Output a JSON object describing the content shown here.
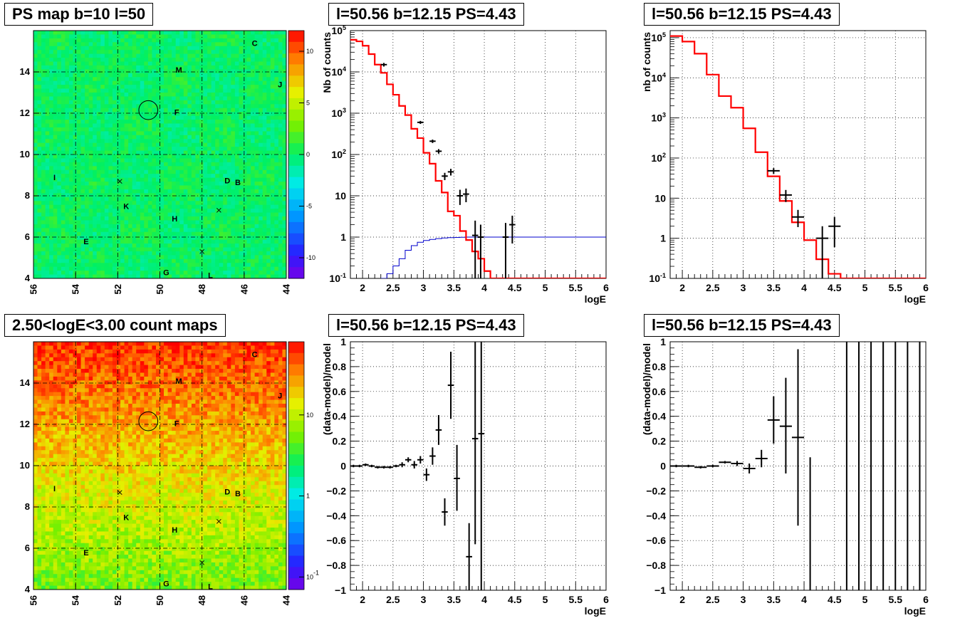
{
  "colors": {
    "model": "#ff0000",
    "exposure": "#0000cc",
    "data": "#000000",
    "grid": "#000000"
  },
  "panels": [
    {
      "id": "ps-map",
      "title": "PS map b=10 l=50",
      "kind": "map",
      "map_palette": "ps",
      "xaxis": {
        "min": 56,
        "max": 44,
        "ticks": [
          56,
          54,
          52,
          50,
          48,
          46,
          44
        ],
        "grid": [
          54,
          52,
          50,
          48,
          46
        ]
      },
      "yaxis": {
        "min": 4,
        "max": 16,
        "ticks": [
          4,
          6,
          8,
          10,
          12,
          14
        ],
        "grid": [
          6,
          8,
          10,
          12,
          14
        ]
      },
      "colorbar": {
        "scale": "linear",
        "min": -12,
        "max": 12,
        "ticks": [
          10,
          5,
          0,
          -5,
          -10
        ],
        "labels": [
          "10",
          "5",
          "0",
          "-5",
          "-10"
        ]
      },
      "sources": [
        {
          "label": "C",
          "l": 45.5,
          "b": 15.4
        },
        {
          "label": "M",
          "l": 49.1,
          "b": 14.1
        },
        {
          "label": "J",
          "l": 44.3,
          "b": 13.4
        },
        {
          "label": "F",
          "l": 49.2,
          "b": 12.05
        },
        {
          "label": "I",
          "l": 55.0,
          "b": 8.9
        },
        {
          "label": "D",
          "l": 46.8,
          "b": 8.75
        },
        {
          "label": "B",
          "l": 46.3,
          "b": 8.65
        },
        {
          "label": "K",
          "l": 51.6,
          "b": 7.5
        },
        {
          "label": "H",
          "l": 49.3,
          "b": 6.9
        },
        {
          "label": "E",
          "l": 53.5,
          "b": 5.8
        },
        {
          "label": "G",
          "l": 49.7,
          "b": 4.3
        },
        {
          "label": "L",
          "l": 47.6,
          "b": 4.15
        }
      ],
      "crosses": [
        {
          "l": 51.9,
          "b": 8.7
        },
        {
          "l": 47.2,
          "b": 7.3
        },
        {
          "l": 48.0,
          "b": 5.3
        }
      ],
      "circle": {
        "l": 50.55,
        "b": 12.15,
        "r": 0.45
      }
    },
    {
      "id": "spectrum-1",
      "title": "l=50.56 b=12.15 PS=4.43",
      "kind": "spectrum",
      "ylabel": "Nb of counts",
      "xlabel": "logE",
      "xaxis": {
        "min": 1.8,
        "max": 6,
        "ticks": [
          2,
          2.5,
          3,
          3.5,
          4,
          4.5,
          5,
          5.5,
          6
        ],
        "labels": [
          "2",
          "2.5",
          "3",
          "3.5",
          "4",
          "4.5",
          "5",
          "5.5",
          "6"
        ]
      },
      "yaxis": {
        "scale": "log",
        "min": 0.1,
        "max": 100000,
        "ticks": [
          0.1,
          1,
          10,
          100,
          1000,
          10000,
          100000
        ],
        "labels": [
          "10^-1",
          "1",
          "10",
          "10^2",
          "10^3",
          "10^4",
          "10^5"
        ]
      },
      "model_step": {
        "edges": [
          1.8,
          1.9,
          2.0,
          2.1,
          2.2,
          2.3,
          2.4,
          2.5,
          2.6,
          2.7,
          2.8,
          2.9,
          3.0,
          3.1,
          3.2,
          3.3,
          3.4,
          3.5,
          3.6,
          3.7,
          3.8,
          3.9,
          4.0,
          4.1,
          4.2,
          4.3,
          6.0
        ],
        "values": [
          60000,
          55000,
          43000,
          27000,
          15000,
          9500,
          5000,
          2800,
          1500,
          900,
          420,
          250,
          110,
          60,
          23,
          12,
          4.2,
          3.3,
          1.4,
          0.85,
          0.45,
          0.3,
          0.15,
          0.09,
          0.1,
          0.1
        ]
      },
      "exposure_step": {
        "edges": [
          2.3,
          2.4,
          2.5,
          2.6,
          2.7,
          2.8,
          2.9,
          3.0,
          3.1,
          3.2,
          3.3,
          3.4,
          3.5,
          3.6,
          3.7,
          6.0
        ],
        "values": [
          0.1,
          0.13,
          0.2,
          0.3,
          0.48,
          0.62,
          0.75,
          0.83,
          0.88,
          0.92,
          0.95,
          0.97,
          0.98,
          0.99,
          1.0
        ]
      },
      "points": [
        {
          "x": 2.35,
          "y": 15000,
          "lo": 13500,
          "hi": 16500,
          "dx": 0.05
        },
        {
          "x": 2.95,
          "y": 600,
          "lo": 550,
          "hi": 650,
          "dx": 0.05
        },
        {
          "x": 3.15,
          "y": 210,
          "lo": 190,
          "hi": 230,
          "dx": 0.05
        },
        {
          "x": 3.25,
          "y": 120,
          "lo": 105,
          "hi": 135,
          "dx": 0.05
        },
        {
          "x": 3.35,
          "y": 30,
          "lo": 24,
          "hi": 36,
          "dx": 0.05
        },
        {
          "x": 3.45,
          "y": 38,
          "lo": 31,
          "hi": 45,
          "dx": 0.05
        },
        {
          "x": 3.6,
          "y": 10,
          "lo": 6,
          "hi": 14,
          "dx": 0.05
        },
        {
          "x": 3.7,
          "y": 11,
          "lo": 7,
          "hi": 15,
          "dx": 0.05
        },
        {
          "x": 3.85,
          "y": 1.1,
          "lo": 0.1,
          "hi": 2.5,
          "dx": 0.05
        },
        {
          "x": 3.94,
          "y": 1.0,
          "lo": 0.1,
          "hi": 2.0,
          "dx": 0.05
        },
        {
          "x": 4.35,
          "y": 1.0,
          "lo": 0.1,
          "hi": 2.2,
          "dx": 0.05
        },
        {
          "x": 4.46,
          "y": 2.0,
          "lo": 0.7,
          "hi": 3.3,
          "dx": 0.05
        }
      ]
    },
    {
      "id": "spectrum-2",
      "title": "l=50.56 b=12.15 PS=4.43",
      "kind": "spectrum",
      "ylabel": "nb of counts",
      "xlabel": "logE",
      "xaxis": {
        "min": 1.8,
        "max": 6,
        "ticks": [
          2,
          2.5,
          3,
          3.5,
          4,
          4.5,
          5,
          5.5,
          6
        ],
        "labels": [
          "2",
          "2.5",
          "3",
          "3.5",
          "4",
          "4.5",
          "5",
          "5.5",
          "6"
        ]
      },
      "yaxis": {
        "scale": "log",
        "min": 0.1,
        "max": 150000,
        "ticks": [
          0.1,
          1,
          10,
          100,
          1000,
          10000,
          100000
        ],
        "labels": [
          "10^-1",
          "1",
          "10",
          "10^2",
          "10^3",
          "10^4",
          "10^5"
        ]
      },
      "model_step": {
        "edges": [
          1.8,
          2.0,
          2.2,
          2.4,
          2.6,
          2.8,
          3.0,
          3.2,
          3.4,
          3.6,
          3.8,
          4.0,
          4.2,
          4.4,
          4.6,
          6.0
        ],
        "values": [
          110000,
          80000,
          40000,
          12000,
          3500,
          1800,
          550,
          140,
          35,
          8.5,
          2.5,
          0.9,
          0.3,
          0.13,
          0.1
        ]
      },
      "points": [
        {
          "x": 3.5,
          "y": 48,
          "lo": 40,
          "hi": 56,
          "dx": 0.1
        },
        {
          "x": 3.7,
          "y": 12,
          "lo": 8,
          "hi": 16,
          "dx": 0.1
        },
        {
          "x": 3.9,
          "y": 3.4,
          "lo": 1.9,
          "hi": 5.1,
          "dx": 0.1
        },
        {
          "x": 4.3,
          "y": 1.0,
          "lo": 0.1,
          "hi": 2.0,
          "dx": 0.1
        },
        {
          "x": 4.5,
          "y": 2.0,
          "lo": 0.6,
          "hi": 3.4,
          "dx": 0.1
        }
      ]
    },
    {
      "id": "count-map",
      "title": "2.50<logE<3.00 count maps",
      "kind": "map",
      "map_palette": "counts",
      "xaxis": {
        "min": 56,
        "max": 44,
        "ticks": [
          56,
          54,
          52,
          50,
          48,
          46,
          44
        ],
        "grid": [
          54,
          52,
          50,
          48,
          46
        ]
      },
      "yaxis": {
        "min": 4,
        "max": 16,
        "ticks": [
          4,
          6,
          8,
          10,
          12,
          14
        ],
        "grid": [
          6,
          8,
          10,
          12,
          14
        ]
      },
      "colorbar": {
        "scale": "log",
        "min": 0.07,
        "max": 80,
        "ticks": [
          10,
          1,
          0.1
        ],
        "labels": [
          "10",
          "1",
          "10^-1"
        ]
      },
      "sources": [
        {
          "label": "C",
          "l": 45.5,
          "b": 15.4
        },
        {
          "label": "M",
          "l": 49.1,
          "b": 14.1
        },
        {
          "label": "J",
          "l": 44.3,
          "b": 13.4
        },
        {
          "label": "F",
          "l": 49.2,
          "b": 12.05
        },
        {
          "label": "I",
          "l": 55.0,
          "b": 8.9
        },
        {
          "label": "D",
          "l": 46.8,
          "b": 8.75
        },
        {
          "label": "B",
          "l": 46.3,
          "b": 8.65
        },
        {
          "label": "K",
          "l": 51.6,
          "b": 7.5
        },
        {
          "label": "H",
          "l": 49.3,
          "b": 6.9
        },
        {
          "label": "E",
          "l": 53.5,
          "b": 5.8
        },
        {
          "label": "G",
          "l": 49.7,
          "b": 4.3
        },
        {
          "label": "L",
          "l": 47.6,
          "b": 4.15
        }
      ],
      "crosses": [
        {
          "l": 51.9,
          "b": 8.7
        },
        {
          "l": 47.2,
          "b": 7.3
        },
        {
          "l": 48.0,
          "b": 5.3
        }
      ],
      "circle": {
        "l": 50.55,
        "b": 12.15,
        "r": 0.45
      }
    },
    {
      "id": "residuals-1",
      "title": "l=50.56 b=12.15 PS=4.43",
      "kind": "residual",
      "ylabel": "(data-model)/model",
      "xlabel": "logE",
      "xaxis": {
        "min": 1.8,
        "max": 6,
        "ticks": [
          2,
          2.5,
          3,
          3.5,
          4,
          4.5,
          5,
          5.5,
          6
        ],
        "labels": [
          "2",
          "2.5",
          "3",
          "3.5",
          "4",
          "4.5",
          "5",
          "5.5",
          "6"
        ]
      },
      "yaxis": {
        "scale": "linear",
        "min": -1,
        "max": 1,
        "ticks": [
          -1,
          -0.8,
          -0.6,
          -0.4,
          -0.2,
          0,
          0.2,
          0.4,
          0.6,
          0.8,
          1
        ],
        "labels": [
          "−1",
          "−0.8",
          "−0.6",
          "−0.4",
          "−0.2",
          "0",
          "0.2",
          "0.4",
          "0.6",
          "0.8",
          "1"
        ]
      },
      "points": [
        {
          "x": 1.85,
          "y": 0.0,
          "lo": -0.01,
          "hi": 0.01,
          "dx": 0.05
        },
        {
          "x": 1.95,
          "y": 0.0,
          "lo": -0.01,
          "hi": 0.01,
          "dx": 0.05
        },
        {
          "x": 2.05,
          "y": 0.01,
          "lo": 0.0,
          "hi": 0.02,
          "dx": 0.05
        },
        {
          "x": 2.15,
          "y": 0.0,
          "lo": -0.01,
          "hi": 0.01,
          "dx": 0.05
        },
        {
          "x": 2.25,
          "y": -0.01,
          "lo": -0.02,
          "hi": 0.0,
          "dx": 0.05
        },
        {
          "x": 2.35,
          "y": -0.01,
          "lo": -0.02,
          "hi": 0.0,
          "dx": 0.05
        },
        {
          "x": 2.45,
          "y": -0.01,
          "lo": -0.02,
          "hi": 0.0,
          "dx": 0.05
        },
        {
          "x": 2.55,
          "y": 0.0,
          "lo": -0.01,
          "hi": 0.01,
          "dx": 0.05
        },
        {
          "x": 2.65,
          "y": 0.01,
          "lo": -0.01,
          "hi": 0.03,
          "dx": 0.05
        },
        {
          "x": 2.75,
          "y": 0.05,
          "lo": 0.03,
          "hi": 0.07,
          "dx": 0.05
        },
        {
          "x": 2.85,
          "y": 0.01,
          "lo": -0.02,
          "hi": 0.04,
          "dx": 0.05
        },
        {
          "x": 2.95,
          "y": 0.05,
          "lo": 0.02,
          "hi": 0.08,
          "dx": 0.05
        },
        {
          "x": 3.05,
          "y": -0.07,
          "lo": -0.12,
          "hi": -0.02,
          "dx": 0.05
        },
        {
          "x": 3.15,
          "y": 0.08,
          "lo": 0.01,
          "hi": 0.15,
          "dx": 0.05
        },
        {
          "x": 3.25,
          "y": 0.29,
          "lo": 0.17,
          "hi": 0.41,
          "dx": 0.05
        },
        {
          "x": 3.35,
          "y": -0.37,
          "lo": -0.48,
          "hi": -0.26,
          "dx": 0.05
        },
        {
          "x": 3.45,
          "y": 0.65,
          "lo": 0.38,
          "hi": 0.92,
          "dx": 0.05
        },
        {
          "x": 3.55,
          "y": -0.1,
          "lo": -0.36,
          "hi": 0.17,
          "dx": 0.05
        },
        {
          "x": 3.75,
          "y": -0.73,
          "lo": -1.0,
          "hi": -0.46,
          "dx": 0.05
        },
        {
          "x": 3.85,
          "y": 0.22,
          "lo": -0.63,
          "hi": 1.0,
          "dx": 0.05
        },
        {
          "x": 3.95,
          "y": 0.26,
          "lo": -1.0,
          "hi": 1.0,
          "dx": 0.05
        }
      ]
    },
    {
      "id": "residuals-2",
      "title": "l=50.56 b=12.15 PS=4.43",
      "kind": "residual",
      "ylabel": "(data-model)/model",
      "xlabel": "logE",
      "xaxis": {
        "min": 1.8,
        "max": 6,
        "ticks": [
          2,
          2.5,
          3,
          3.5,
          4,
          4.5,
          5,
          5.5,
          6
        ],
        "labels": [
          "2",
          "2.5",
          "3",
          "3.5",
          "4",
          "4.5",
          "5",
          "5.5",
          "6"
        ]
      },
      "yaxis": {
        "scale": "linear",
        "min": -1,
        "max": 1,
        "ticks": [
          -1,
          -0.8,
          -0.6,
          -0.4,
          -0.2,
          0,
          0.2,
          0.4,
          0.6,
          0.8,
          1
        ],
        "labels": [
          "−1",
          "−0.8",
          "−0.6",
          "−0.4",
          "−0.2",
          "0",
          "0.2",
          "0.4",
          "0.6",
          "0.8",
          "1"
        ]
      },
      "points": [
        {
          "x": 1.9,
          "y": 0.0,
          "lo": -0.01,
          "hi": 0.01,
          "dx": 0.1
        },
        {
          "x": 2.1,
          "y": 0.0,
          "lo": -0.01,
          "hi": 0.01,
          "dx": 0.1
        },
        {
          "x": 2.3,
          "y": -0.01,
          "lo": -0.02,
          "hi": 0.0,
          "dx": 0.1
        },
        {
          "x": 2.5,
          "y": 0.0,
          "lo": -0.01,
          "hi": 0.01,
          "dx": 0.1
        },
        {
          "x": 2.7,
          "y": 0.03,
          "lo": 0.02,
          "hi": 0.04,
          "dx": 0.1
        },
        {
          "x": 2.9,
          "y": 0.02,
          "lo": 0.0,
          "hi": 0.04,
          "dx": 0.1
        },
        {
          "x": 3.1,
          "y": -0.02,
          "lo": -0.06,
          "hi": 0.02,
          "dx": 0.1
        },
        {
          "x": 3.3,
          "y": 0.06,
          "lo": -0.01,
          "hi": 0.13,
          "dx": 0.1
        },
        {
          "x": 3.5,
          "y": 0.37,
          "lo": 0.18,
          "hi": 0.56,
          "dx": 0.1
        },
        {
          "x": 3.7,
          "y": 0.32,
          "lo": -0.06,
          "hi": 0.71,
          "dx": 0.1
        },
        {
          "x": 3.9,
          "y": 0.23,
          "lo": -0.48,
          "hi": 0.94,
          "dx": 0.1
        },
        {
          "x": 4.1,
          "y": -1.0,
          "lo": -1.0,
          "hi": 0.07,
          "dx": 0.0
        },
        {
          "x": 4.7,
          "y": 1.0,
          "lo": -1.0,
          "hi": 1.0,
          "dx": 0.0
        },
        {
          "x": 4.9,
          "y": 1.0,
          "lo": -1.0,
          "hi": 1.0,
          "dx": 0.0
        },
        {
          "x": 5.1,
          "y": 1.0,
          "lo": -1.0,
          "hi": 1.0,
          "dx": 0.0
        },
        {
          "x": 5.3,
          "y": 1.0,
          "lo": -1.0,
          "hi": 1.0,
          "dx": 0.0
        },
        {
          "x": 5.5,
          "y": 1.0,
          "lo": -1.0,
          "hi": 1.0,
          "dx": 0.0
        },
        {
          "x": 5.7,
          "y": 1.0,
          "lo": -1.0,
          "hi": 1.0,
          "dx": 0.0
        },
        {
          "x": 5.9,
          "y": 1.0,
          "lo": -1.0,
          "hi": 1.0,
          "dx": 0.0
        }
      ]
    }
  ]
}
